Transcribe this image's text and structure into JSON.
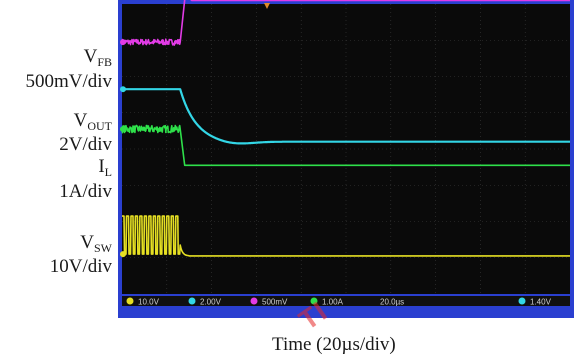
{
  "chart_data": {
    "type": "line",
    "title": "",
    "xlabel": "Time (20µs/div)",
    "ylabel": "",
    "grid": true,
    "x_divisions": 10,
    "y_divisions": 8,
    "step_time_div": 1.3,
    "series": [
      {
        "name_main": "V",
        "name_sub": "FB",
        "scale": "500mV/div",
        "color": "#e23be6",
        "level_before_div": 6.95,
        "level_after_div": 8.1,
        "noise_before": 0.08,
        "behavior": "step-up"
      },
      {
        "name_main": "V",
        "name_sub": "OUT",
        "scale": "2V/div",
        "color": "#33d6e6",
        "level_before_div": 5.65,
        "level_after_div": 4.2,
        "settle_div": 0.55,
        "behavior": "decay"
      },
      {
        "name_main": "I",
        "name_sub": "L",
        "scale": "1A/div",
        "color": "#2ee04a",
        "level_before_div": 4.55,
        "level_after_div": 3.55,
        "noise_before": 0.1,
        "behavior": "step-down"
      },
      {
        "name_main": "V",
        "name_sub": "SW",
        "scale": "10V/div",
        "color": "#e6e023",
        "level_before_div": 1.1,
        "level_after_div": 1.05,
        "switch_high_div": 2.15,
        "behavior": "switching-then-off"
      }
    ]
  },
  "status_bar": {
    "ch1": "10.0V",
    "ch2": "2.00V",
    "ch3": "500mV",
    "ch4": "1.00A",
    "timebase": "20.0µs",
    "trigger": "1.40V"
  },
  "colors": {
    "screen_bg": "#0a0a0a",
    "grid": "#3a3a3a",
    "frame": "#2a3fd0",
    "status_bg": "#101010"
  },
  "watermark": "TI"
}
